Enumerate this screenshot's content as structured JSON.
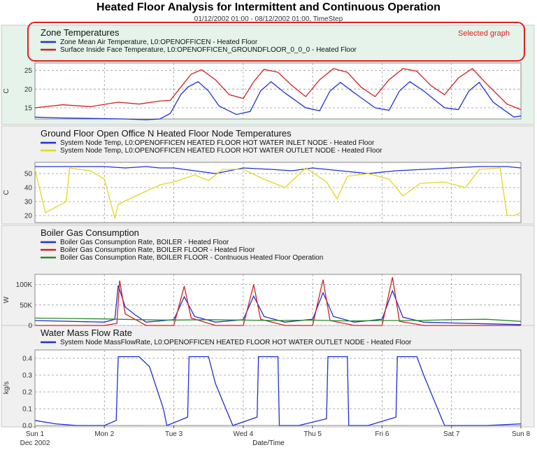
{
  "header": {
    "title": "Heated Floor Analysis for Intermittent and Continuous Operation",
    "subtitle": "01/12/2002 01:00 - 08/12/2002 01:00, TimeStep",
    "selected_label": "Selected graph",
    "selection_color": "#e02020",
    "selected_panel_bg": "#e5f3ea"
  },
  "chart_data": [
    {
      "type": "line",
      "title": "Zone Temperatures",
      "ylabel": "C",
      "ylim": [
        12,
        27
      ],
      "yticks": [
        "15",
        "20",
        "25"
      ],
      "grid": true,
      "x_unit": "days from Sun 1 00:00",
      "series": [
        {
          "name": "Zone Mean Air Temperature, L0:OPENOFFICEN - Heated Floor",
          "color": "#2030d0",
          "x": [
            0,
            0.3,
            0.6,
            1.0,
            1.3,
            1.6,
            1.8,
            1.95,
            2.1,
            2.2,
            2.35,
            2.5,
            2.65,
            2.9,
            3.1,
            3.25,
            3.4,
            3.6,
            3.9,
            4.1,
            4.25,
            4.4,
            4.6,
            4.9,
            5.1,
            5.25,
            5.4,
            5.6,
            5.9,
            6.1,
            6.25,
            6.4,
            6.6,
            6.9,
            7.0
          ],
          "values": [
            12.5,
            12.3,
            12.2,
            12.1,
            12.0,
            11.8,
            12.0,
            13.5,
            18.5,
            20.5,
            22.0,
            19.5,
            15.5,
            13.2,
            14.0,
            19.5,
            22.0,
            19.0,
            15.0,
            14.2,
            19.5,
            21.8,
            19.0,
            15.0,
            14.3,
            19.5,
            22.0,
            19.5,
            15.0,
            14.5,
            19.5,
            21.8,
            16.5,
            12.5,
            12.8
          ]
        },
        {
          "name": "Surface Inside Face Temperature, L0:OPENOFFICEN_GROUNDFLOOR_0_0_0 - Heated Floor",
          "color": "#d02020",
          "x": [
            0,
            0.4,
            0.8,
            1.2,
            1.5,
            1.8,
            1.95,
            2.1,
            2.25,
            2.4,
            2.6,
            2.8,
            3.0,
            3.15,
            3.3,
            3.5,
            3.7,
            3.9,
            4.1,
            4.3,
            4.5,
            4.7,
            4.9,
            5.1,
            5.3,
            5.5,
            5.7,
            5.9,
            6.1,
            6.3,
            6.5,
            6.8,
            7.0
          ],
          "values": [
            15.0,
            15.8,
            15.3,
            16.5,
            16.0,
            16.8,
            17.0,
            20.5,
            24.0,
            25.2,
            22.5,
            18.5,
            17.5,
            22.0,
            25.3,
            24.5,
            21.0,
            18.0,
            22.5,
            25.5,
            24.5,
            20.5,
            18.0,
            22.5,
            25.5,
            24.8,
            21.0,
            18.5,
            23.0,
            25.5,
            21.5,
            16.0,
            14.5
          ]
        }
      ]
    },
    {
      "type": "line",
      "title": "Ground Floor Open Office N Heated Floor Node Temperatures",
      "ylabel": "C",
      "ylim": [
        15,
        58
      ],
      "yticks": [
        "20",
        "30",
        "40",
        "50"
      ],
      "grid": true,
      "series": [
        {
          "name": "System Node Temp, L0:OPENOFFICEN HEATED FLOOR HOT WATER INLET NODE - Heated Floor",
          "color": "#2030d0",
          "x": [
            0,
            0.5,
            1.0,
            1.3,
            1.6,
            1.8,
            2.0,
            2.3,
            2.6,
            3.0,
            3.4,
            3.7,
            4.0,
            4.4,
            4.8,
            5.2,
            5.6,
            6.0,
            6.4,
            6.8,
            7.0
          ],
          "values": [
            55,
            55,
            55,
            54,
            55,
            54,
            54,
            52,
            50,
            54,
            53,
            52,
            54,
            52,
            50,
            52,
            53,
            54,
            55,
            55,
            54
          ]
        },
        {
          "name": "System Node Temp, L0:OPENOFFICEN HEATED FLOOR HOT WATER OUTLET NODE - Heated Floor",
          "color": "#e0d820",
          "x": [
            0,
            0.15,
            0.45,
            0.5,
            0.8,
            1.0,
            1.15,
            1.2,
            1.45,
            1.8,
            2.0,
            2.3,
            2.5,
            2.7,
            3.0,
            3.3,
            3.6,
            3.9,
            4.2,
            4.35,
            4.5,
            4.8,
            5.1,
            5.3,
            5.55,
            5.9,
            6.2,
            6.4,
            6.7,
            6.8,
            6.9,
            7.0
          ],
          "values": [
            53,
            22,
            30,
            54,
            52,
            46,
            18,
            28,
            34,
            42,
            44,
            49,
            45,
            53,
            53,
            46,
            40,
            54,
            44,
            32,
            48,
            50,
            46,
            34,
            43,
            44,
            40,
            53,
            54,
            20,
            20,
            22
          ]
        }
      ]
    },
    {
      "type": "line",
      "title": "Boiler Gas Consumption",
      "ylabel": "W",
      "ylim": [
        0,
        125000
      ],
      "yticks": [
        "0",
        "50K",
        "100K"
      ],
      "grid": true,
      "series": [
        {
          "name": "Boiler Gas Consumption Rate, BOILER - Heated Floor",
          "color": "#2030d0",
          "x": [
            0,
            1.0,
            1.15,
            1.2,
            1.3,
            1.45,
            1.6,
            2.0,
            2.15,
            2.3,
            2.6,
            3.0,
            3.15,
            3.3,
            3.6,
            4.0,
            4.15,
            4.3,
            4.6,
            5.0,
            5.15,
            5.3,
            5.6,
            6.0,
            6.5,
            7.0
          ],
          "values": [
            12000,
            8000,
            15000,
            98000,
            45000,
            25000,
            8000,
            14000,
            70000,
            22000,
            8000,
            14000,
            72000,
            22000,
            8000,
            15000,
            80000,
            22000,
            8000,
            15000,
            85000,
            20000,
            8000,
            6000,
            4000,
            2000
          ]
        },
        {
          "name": "Boiler Gas Consumption Rate, BOILER FLOOR - Heated Floor",
          "color": "#d02020",
          "x": [
            0,
            1.0,
            1.18,
            1.22,
            1.3,
            1.6,
            2.0,
            2.15,
            2.25,
            2.6,
            3.0,
            3.15,
            3.25,
            3.6,
            4.0,
            4.15,
            4.25,
            4.6,
            5.0,
            5.15,
            5.25,
            5.6,
            6.0,
            7.0
          ],
          "values": [
            0,
            0,
            5000,
            110000,
            28000,
            0,
            0,
            96000,
            18000,
            0,
            0,
            100000,
            15000,
            0,
            0,
            112000,
            12000,
            0,
            0,
            118000,
            10000,
            0,
            0,
            0
          ]
        },
        {
          "name": "Boiler Gas Consumption Rate, BOILER FLOOR - Contnuous Heated Floor Operation",
          "color": "#2a8a2a",
          "x": [
            0,
            0.5,
            1.0,
            1.5,
            2.0,
            2.5,
            3.0,
            3.5,
            4.0,
            4.5,
            5.0,
            5.5,
            6.0,
            6.5,
            7.0
          ],
          "values": [
            18000,
            17000,
            16000,
            14000,
            13000,
            14000,
            13000,
            12000,
            13000,
            11000,
            12000,
            12000,
            14000,
            15000,
            10000
          ]
        }
      ]
    },
    {
      "type": "line",
      "title": "Water Mass Flow Rate",
      "ylabel": "kg/s",
      "ylim": [
        0,
        0.45
      ],
      "yticks": [
        "0.0",
        "0.1",
        "0.2",
        "0.3",
        "0.4"
      ],
      "grid": true,
      "series": [
        {
          "name": "System Node MassFlowRate, L0:OPENOFFICEN HEATED FLOOR HOT WATER OUTLET NODE - Heated Floor",
          "color": "#2030d0",
          "x": [
            0,
            0.3,
            0.6,
            1.0,
            1.17,
            1.2,
            1.5,
            1.65,
            1.85,
            1.9,
            2.2,
            2.22,
            2.5,
            2.6,
            2.75,
            2.85,
            3.2,
            3.22,
            3.5,
            3.52,
            3.8,
            4.2,
            4.22,
            4.5,
            4.52,
            4.8,
            5.2,
            5.22,
            5.5,
            5.6,
            5.85,
            5.9,
            6.5,
            7.0
          ],
          "values": [
            0.03,
            0.01,
            0.0,
            0.0,
            0.03,
            0.41,
            0.41,
            0.35,
            0.1,
            0.0,
            0.05,
            0.41,
            0.41,
            0.25,
            0.1,
            0.0,
            0.05,
            0.41,
            0.41,
            0.0,
            0.0,
            0.04,
            0.41,
            0.41,
            0.0,
            0.0,
            0.05,
            0.41,
            0.41,
            0.3,
            0.05,
            0.0,
            0.0,
            0.01
          ]
        }
      ]
    }
  ],
  "x_axis": {
    "label": "Date/Time",
    "ticks": [
      "Sun 1",
      "Mon 2",
      "Tue 3",
      "Wed 4",
      "Thu 5",
      "Fri 6",
      "Sat 7",
      "Sun 8"
    ],
    "sub_label": "Dec 2002",
    "range": [
      0,
      7
    ]
  }
}
